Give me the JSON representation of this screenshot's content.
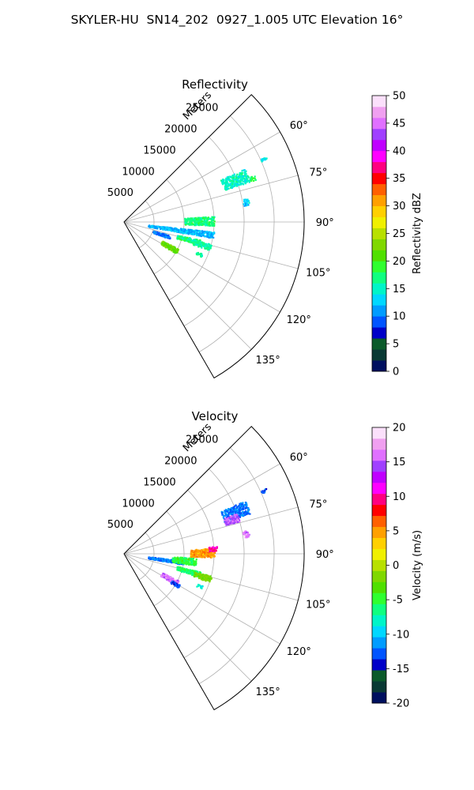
{
  "title": "SKYLER-HU  SN14_202  0927_1.005 UTC Elevation 16°",
  "chart_data": [
    {
      "type": "heatmap",
      "title": "Reflectivity",
      "radial_label": "Meters",
      "radial_ticks": [
        "5000",
        "10000",
        "15000",
        "20000",
        "25000"
      ],
      "radial_range_m": [
        0,
        30000
      ],
      "azimuth_range_deg": [
        45,
        150
      ],
      "azimuth_ticks": [
        "60°",
        "75°",
        "90°",
        "105°",
        "120°",
        "135°"
      ],
      "colorbar": {
        "label": "Reflectivity dBZ",
        "range": [
          0,
          50
        ],
        "ticks": [
          "0",
          "5",
          "10",
          "15",
          "20",
          "25",
          "30",
          "35",
          "40",
          "45",
          "50"
        ],
        "colors": [
          "#00105f",
          "#0a3a34",
          "#0b5a2a",
          "#0000c8",
          "#0055ff",
          "#009cff",
          "#00d8ff",
          "#00f5c8",
          "#10ff80",
          "#30ff30",
          "#50e000",
          "#80d800",
          "#b8e000",
          "#f0f000",
          "#ffd000",
          "#ffa000",
          "#ff6000",
          "#ff0000",
          "#ff0080",
          "#ff00ff",
          "#c000ff",
          "#a040ff",
          "#e070ff",
          "#f0a0f0",
          "#fbe0fb"
        ]
      },
      "echo_regions": [
        {
          "r_km": [
            17.5,
            22
          ],
          "az_deg": [
            66,
            72
          ],
          "dbz": 15
        },
        {
          "r_km": [
            22,
            23
          ],
          "az_deg": [
            70,
            72
          ],
          "dbz": 18
        },
        {
          "r_km": [
            20,
            21
          ],
          "az_deg": [
            79,
            82
          ],
          "dbz": 13
        },
        {
          "r_km": [
            4,
            15
          ],
          "az_deg": [
            96,
            100
          ],
          "dbz": 12
        },
        {
          "r_km": [
            10,
            15
          ],
          "az_deg": [
            86,
            92
          ],
          "dbz": 17
        },
        {
          "r_km": [
            5,
            8
          ],
          "az_deg": [
            106,
            110
          ],
          "dbz": 10
        },
        {
          "r_km": [
            9,
            13
          ],
          "az_deg": [
            103,
            107
          ],
          "dbz": 17
        },
        {
          "r_km": [
            12,
            15
          ],
          "az_deg": [
            104,
            108
          ],
          "dbz": 16
        },
        {
          "r_km": [
            7,
            10
          ],
          "az_deg": [
            116,
            121
          ],
          "dbz": 22
        },
        {
          "r_km": [
            13,
            14
          ],
          "az_deg": [
            112,
            114
          ],
          "dbz": 16
        },
        {
          "r_km": [
            25,
            26
          ],
          "az_deg": [
            65,
            66
          ],
          "dbz": 14
        }
      ]
    },
    {
      "type": "heatmap",
      "title": "Velocity",
      "radial_label": "Meters",
      "radial_ticks": [
        "5000",
        "10000",
        "15000",
        "20000",
        "25000"
      ],
      "radial_range_m": [
        0,
        30000
      ],
      "azimuth_range_deg": [
        45,
        150
      ],
      "azimuth_ticks": [
        "60°",
        "75°",
        "90°",
        "105°",
        "120°",
        "135°"
      ],
      "colorbar": {
        "label": "Velocity (m/s)",
        "range": [
          -20,
          20
        ],
        "ticks": [
          "-20",
          "-15",
          "-10",
          "-5",
          "0",
          "5",
          "10",
          "15",
          "20"
        ],
        "colors": [
          "#00105f",
          "#0a3a34",
          "#0b5a2a",
          "#0000c8",
          "#0055ff",
          "#009cff",
          "#00d8ff",
          "#00f5c8",
          "#10ff80",
          "#30ff30",
          "#50e000",
          "#80d800",
          "#b8e000",
          "#f0f000",
          "#ffd000",
          "#ffa000",
          "#ff6000",
          "#ff0000",
          "#ff0080",
          "#ff00ff",
          "#c000ff",
          "#a040ff",
          "#e070ff",
          "#f0a0f0",
          "#fbe0fb"
        ]
      },
      "echo_regions": [
        {
          "r_km": [
            17.5,
            22
          ],
          "az_deg": [
            66,
            72
          ],
          "v": -12
        },
        {
          "r_km": [
            17.5,
            20
          ],
          "az_deg": [
            70,
            74
          ],
          "v": 15
        },
        {
          "r_km": [
            20,
            21
          ],
          "az_deg": [
            79,
            82
          ],
          "v": 16
        },
        {
          "r_km": [
            4,
            10
          ],
          "az_deg": [
            96,
            100
          ],
          "v": -12
        },
        {
          "r_km": [
            8,
            12
          ],
          "az_deg": [
            93,
            99
          ],
          "v": -5
        },
        {
          "r_km": [
            11,
            15
          ],
          "az_deg": [
            86,
            92
          ],
          "v": 5
        },
        {
          "r_km": [
            14,
            15.5
          ],
          "az_deg": [
            85,
            88
          ],
          "v": 10
        },
        {
          "r_km": [
            9,
            13
          ],
          "az_deg": [
            103,
            107
          ],
          "v": -6
        },
        {
          "r_km": [
            12,
            15
          ],
          "az_deg": [
            104,
            108
          ],
          "v": -2
        },
        {
          "r_km": [
            7,
            10
          ],
          "az_deg": [
            116,
            121
          ],
          "v": 16
        },
        {
          "r_km": [
            9,
            10.5
          ],
          "az_deg": [
            119,
            122
          ],
          "v": -13
        },
        {
          "r_km": [
            13,
            14
          ],
          "az_deg": [
            112,
            114
          ],
          "v": -8
        },
        {
          "r_km": [
            25,
            26
          ],
          "az_deg": [
            65,
            66
          ],
          "v": -13
        }
      ]
    }
  ]
}
